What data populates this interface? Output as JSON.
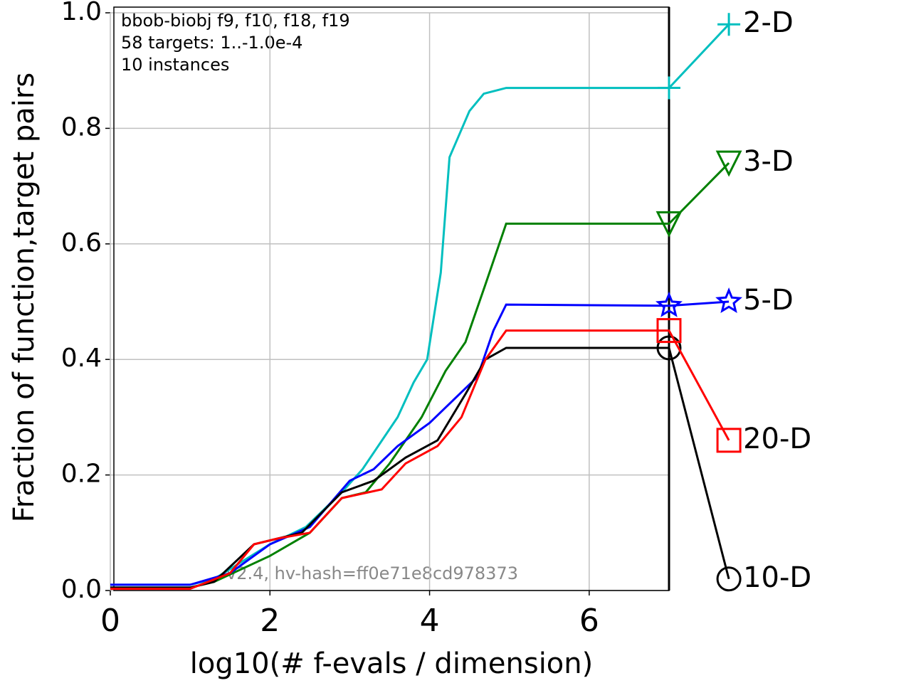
{
  "chart_data": {
    "type": "line",
    "annotations": [
      "bbob-biobj f9, f10, f18, f19",
      "58 targets: 1..-1.0e-4",
      "10 instances"
    ],
    "watermark": "v2.4, hv-hash=ff0e71e8cd978373",
    "x_label": "log10(# f-evals / dimension)",
    "y_label": "Fraction of function,target pairs",
    "xlim": [
      0,
      7
    ],
    "xticks": [
      0,
      2,
      4,
      6
    ],
    "ylim": [
      0,
      1
    ],
    "yticks": [
      {
        "value": 0,
        "label": "0.0"
      },
      0.2,
      0.4,
      0.6,
      0.8,
      {
        "value": 1,
        "label": "1.0"
      }
    ],
    "grid": true,
    "series": [
      {
        "name": "2-D",
        "color": "#00bfbf",
        "marker": "plus",
        "x": [
          0,
          1.0,
          1.3,
          2.0,
          2.45,
          2.9,
          3.16,
          3.6,
          3.8,
          3.97,
          4.14,
          4.25,
          4.5,
          4.68,
          4.96,
          7,
          7.75
        ],
        "values": [
          0.01,
          0.01,
          0.02,
          0.08,
          0.11,
          0.17,
          0.21,
          0.3,
          0.36,
          0.4,
          0.55,
          0.75,
          0.83,
          0.86,
          0.87,
          0.87,
          0.98
        ]
      },
      {
        "name": "3-D",
        "color": "#008000",
        "marker": "triangle-down",
        "x": [
          0,
          1.0,
          1.3,
          2.0,
          2.5,
          2.9,
          3.2,
          3.5,
          3.9,
          4.2,
          4.45,
          4.7,
          4.96,
          7,
          7.75
        ],
        "values": [
          0.005,
          0.005,
          0.015,
          0.06,
          0.1,
          0.16,
          0.17,
          0.22,
          0.3,
          0.38,
          0.43,
          0.53,
          0.635,
          0.635,
          0.74
        ]
      },
      {
        "name": "5-D",
        "color": "#0000ff",
        "marker": "star",
        "x": [
          0,
          1.0,
          1.5,
          2.0,
          2.5,
          3.0,
          3.3,
          3.6,
          4.0,
          4.3,
          4.6,
          4.8,
          4.96,
          7,
          7.75
        ],
        "values": [
          0.01,
          0.01,
          0.03,
          0.08,
          0.11,
          0.19,
          0.21,
          0.25,
          0.29,
          0.33,
          0.37,
          0.45,
          0.495,
          0.493,
          0.5
        ]
      },
      {
        "name": "10-D",
        "color": "#000000",
        "marker": "circle",
        "x": [
          0,
          1.0,
          1.3,
          1.8,
          2.4,
          2.9,
          3.3,
          3.7,
          4.1,
          4.45,
          4.7,
          4.96,
          7,
          7.75
        ],
        "values": [
          0.005,
          0.005,
          0.015,
          0.08,
          0.1,
          0.17,
          0.19,
          0.23,
          0.26,
          0.34,
          0.4,
          0.42,
          0.42,
          0.02
        ]
      },
      {
        "name": "20-D",
        "color": "#ff0000",
        "marker": "square",
        "x": [
          0,
          1.0,
          1.5,
          1.8,
          2.1,
          2.5,
          2.9,
          3.4,
          3.7,
          4.1,
          4.4,
          4.7,
          4.96,
          7,
          7.75
        ],
        "values": [
          0.003,
          0.003,
          0.03,
          0.08,
          0.09,
          0.1,
          0.16,
          0.175,
          0.22,
          0.25,
          0.3,
          0.4,
          0.45,
          0.45,
          0.26
        ]
      }
    ]
  }
}
